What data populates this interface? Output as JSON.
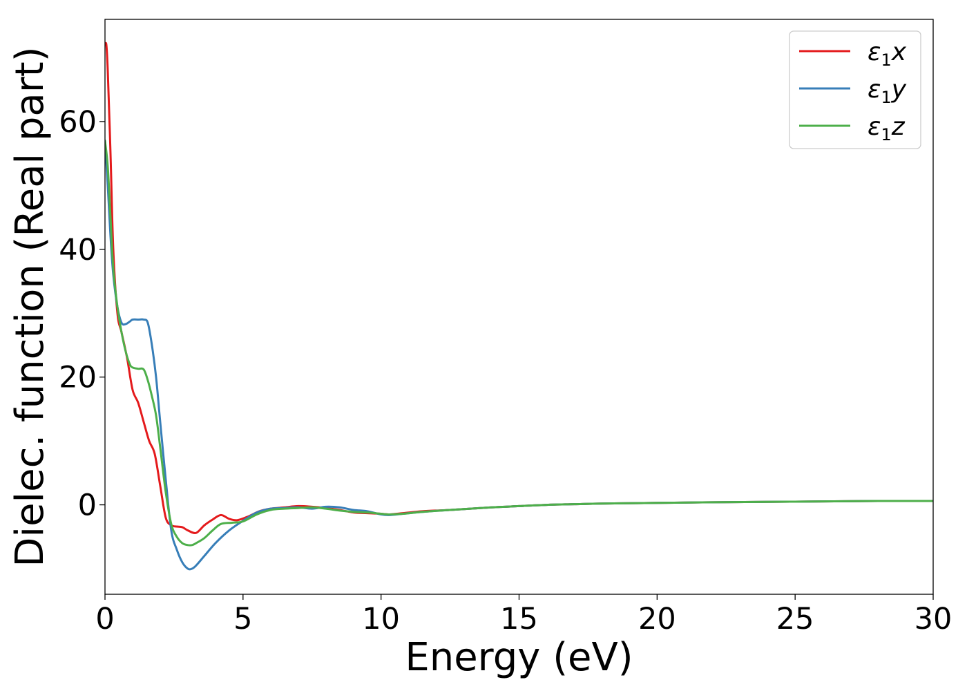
{
  "chart_data": {
    "type": "line",
    "title": "",
    "xlabel": "Energy (eV)",
    "ylabel": "Dielec. function (Real part)",
    "xlim": [
      0,
      30
    ],
    "ylim": [
      -14,
      76
    ],
    "xticks": [
      0,
      5,
      10,
      15,
      20,
      25,
      30
    ],
    "yticks": [
      0,
      20,
      40,
      60
    ],
    "xtick_labels": [
      "0",
      "5",
      "10",
      "15",
      "20",
      "25",
      "30"
    ],
    "ytick_labels": [
      "0",
      "20",
      "40",
      "60"
    ],
    "grid": false,
    "legend_position": "top-right",
    "series": [
      {
        "name": "ε1x",
        "legend_base": "ε",
        "legend_sub": "1",
        "legend_var": "x",
        "color": "#e41a1c",
        "x": [
          0,
          0.05,
          0.1,
          0.2,
          0.3,
          0.45,
          0.6,
          0.8,
          1.0,
          1.2,
          1.4,
          1.6,
          1.8,
          2.0,
          2.2,
          2.4,
          2.6,
          2.8,
          3.0,
          3.3,
          3.6,
          3.9,
          4.2,
          4.5,
          4.8,
          5.2,
          5.6,
          6.0,
          6.5,
          7.0,
          7.5,
          8.0,
          8.5,
          9.0,
          9.5,
          10.0,
          10.3,
          10.8,
          11.5,
          12.5,
          14.0,
          15.0,
          16.0,
          17.0,
          18.0,
          20.0,
          22.0,
          25.0,
          28.0,
          30.0
        ],
        "y": [
          72,
          72,
          68,
          55,
          40,
          30,
          27,
          23,
          18,
          16,
          13,
          10,
          8,
          3,
          -2,
          -3.2,
          -3.4,
          -3.5,
          -4.0,
          -4.4,
          -3.2,
          -2.3,
          -1.6,
          -2.2,
          -2.4,
          -1.8,
          -1.0,
          -0.6,
          -0.4,
          -0.2,
          -0.3,
          -0.5,
          -0.8,
          -1.2,
          -1.3,
          -1.4,
          -1.5,
          -1.3,
          -1.0,
          -0.8,
          -0.4,
          -0.2,
          0.0,
          0.1,
          0.2,
          0.3,
          0.4,
          0.5,
          0.6,
          0.6
        ]
      },
      {
        "name": "ε1y",
        "legend_base": "ε",
        "legend_sub": "1",
        "legend_var": "y",
        "color": "#377eb8",
        "x": [
          0,
          0.1,
          0.2,
          0.3,
          0.45,
          0.6,
          0.75,
          0.9,
          1.0,
          1.2,
          1.4,
          1.55,
          1.7,
          1.85,
          2.0,
          2.2,
          2.4,
          2.6,
          2.8,
          3.0,
          3.15,
          3.3,
          3.6,
          4.0,
          4.5,
          5.0,
          5.5,
          6.0,
          6.5,
          7.0,
          7.5,
          8.0,
          8.5,
          9.0,
          9.5,
          10.0,
          10.3,
          10.8,
          11.5,
          12.5,
          14.0,
          15.0,
          16.0,
          17.0,
          18.0,
          20.0,
          22.0,
          25.0,
          28.0,
          30.0
        ],
        "y": [
          57,
          50,
          42,
          36,
          31,
          28.5,
          28.3,
          28.7,
          29,
          29,
          29,
          28.5,
          25,
          20,
          13,
          4,
          -4,
          -7,
          -9,
          -10,
          -10,
          -9.5,
          -8,
          -6,
          -4,
          -2.5,
          -1.2,
          -0.6,
          -0.5,
          -0.4,
          -0.6,
          -0.3,
          -0.4,
          -0.8,
          -1.0,
          -1.5,
          -1.6,
          -1.4,
          -1.1,
          -0.8,
          -0.4,
          -0.2,
          0.0,
          0.1,
          0.2,
          0.3,
          0.4,
          0.5,
          0.6,
          0.6
        ]
      },
      {
        "name": "ε1z",
        "legend_base": "ε",
        "legend_sub": "1",
        "legend_var": "z",
        "color": "#4daf4a",
        "x": [
          0,
          0.1,
          0.2,
          0.3,
          0.45,
          0.6,
          0.75,
          0.9,
          1.0,
          1.2,
          1.4,
          1.55,
          1.7,
          1.85,
          2.0,
          2.2,
          2.4,
          2.6,
          2.8,
          3.0,
          3.15,
          3.3,
          3.6,
          3.9,
          4.2,
          4.6,
          5.0,
          5.5,
          6.0,
          6.5,
          7.0,
          7.5,
          8.0,
          8.5,
          9.0,
          9.5,
          10.0,
          10.3,
          10.8,
          11.5,
          12.5,
          14.0,
          15.0,
          16.0,
          17.0,
          18.0,
          20.0,
          22.0,
          25.0,
          28.0,
          30.0
        ],
        "y": [
          57,
          53,
          45,
          37,
          31,
          27,
          24,
          22,
          21.5,
          21.3,
          21.2,
          19.5,
          17,
          14,
          9,
          2,
          -3,
          -5,
          -6,
          -6.3,
          -6.3,
          -6,
          -5.2,
          -4.0,
          -3.0,
          -2.8,
          -2.6,
          -1.5,
          -0.8,
          -0.6,
          -0.5,
          -0.4,
          -0.6,
          -0.9,
          -1.1,
          -1.2,
          -1.4,
          -1.5,
          -1.4,
          -1.1,
          -0.8,
          -0.4,
          -0.2,
          0.0,
          0.1,
          0.2,
          0.3,
          0.4,
          0.5,
          0.6,
          0.6
        ]
      }
    ]
  }
}
